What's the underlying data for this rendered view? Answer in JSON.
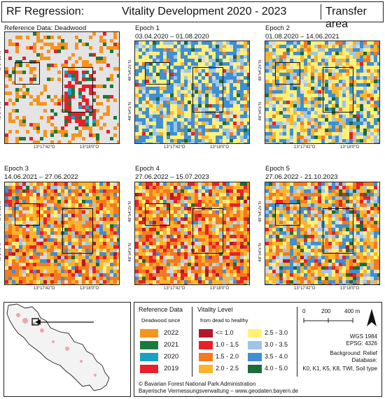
{
  "header": {
    "left": "RF Regression:",
    "center": "Vitality Development 2020 - 2023",
    "right": "Transfer area"
  },
  "panels": [
    {
      "title": "Reference Data: Deadwood",
      "subtitle": "",
      "kind": "reference"
    },
    {
      "title": "Epoch 1",
      "subtitle": "03.04.2020 – 01.08.2020",
      "kind": "e1"
    },
    {
      "title": "Epoch 2",
      "subtitle": "01.08.2020 – 14.06.2021",
      "kind": "e2"
    },
    {
      "title": "Epoch 3",
      "subtitle": "14.06.2021 – 27.06.2022",
      "kind": "e3"
    },
    {
      "title": "Epoch 4",
      "subtitle": "27.06.2022 – 15.07.2023",
      "kind": "e4"
    },
    {
      "title": "Epoch 5",
      "subtitle": "27.06.2022 - 21.10.2023",
      "kind": "e5"
    }
  ],
  "coords": {
    "x1": "13°17'42\"O",
    "x2": "13°18'0\"O",
    "y1": "48°54'5\"N",
    "y2": "48°54'25\"N"
  },
  "legend": {
    "reference_title": "Reference Data",
    "deadwood_since": "Deadwood since",
    "reference_items": [
      {
        "label": "2022",
        "color": "#f7931e"
      },
      {
        "label": "2021",
        "color": "#1a7a3c"
      },
      {
        "label": "2020",
        "color": "#1aa0c8"
      },
      {
        "label": "2019",
        "color": "#e8202a"
      }
    ],
    "vitality_title": "Vitality Level",
    "vitality_sub": "from dead to healthy",
    "vitality_items": [
      {
        "label": "<= 1.0",
        "color": "#b2182b"
      },
      {
        "label": "1.0 - 1.5",
        "color": "#e8202a"
      },
      {
        "label": "1.5 - 2.0",
        "color": "#f47a20"
      },
      {
        "label": "2.0 - 2.5",
        "color": "#fdb42b"
      },
      {
        "label": "2.5 - 3.0",
        "color": "#fff07a"
      },
      {
        "label": "3.0 - 3.5",
        "color": "#9cc6e8"
      },
      {
        "label": "3.5 - 4.0",
        "color": "#3f8fd2"
      },
      {
        "label": "4.0 - 5.0",
        "color": "#1d6b3a"
      }
    ],
    "credits_1": "© Bavarian Forest National Park Administration",
    "credits_2": "Bayerische Vermessungsverwaltung – www.geodaten.bayern.de"
  },
  "scale": {
    "t0": "0",
    "t1": "200",
    "t2": "400 m"
  },
  "meta": {
    "crs_1": "WGS 1984",
    "crs_2": "EPSG: 4326",
    "bg": "Background: Relief",
    "db": "Database:",
    "db_list": "K0, K1, K5, K8, TWI, Soil type"
  }
}
